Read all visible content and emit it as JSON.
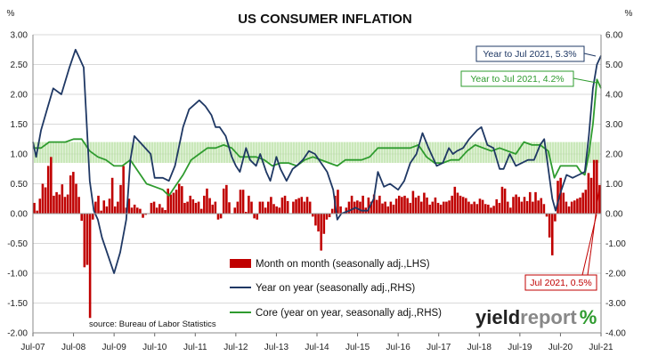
{
  "chart_data": {
    "type": "bar+line",
    "title": "US CONSUMER INFLATION",
    "left_unit": "%",
    "right_unit": "%",
    "left_axis": {
      "min": -2.0,
      "max": 3.0,
      "step": 0.5,
      "tick_labels": [
        "3.00",
        "2.50",
        "2.00",
        "1.50",
        "1.00",
        "0.50",
        "0.00",
        "-0.50",
        "-1.00",
        "-1.50",
        "-2.00"
      ]
    },
    "right_axis": {
      "min": -4.0,
      "max": 6.0,
      "step": 1.0,
      "tick_labels": [
        "6.00",
        "5.00",
        "4.00",
        "3.00",
        "2.00",
        "1.00",
        "0.00",
        "-1.00",
        "-2.00",
        "-3.00",
        "-4.00"
      ]
    },
    "x_tick_labels": [
      "Jul-07",
      "Jul-08",
      "Jul-09",
      "Jul-10",
      "Jul-11",
      "Jul-12",
      "Jul-13",
      "Jul-14",
      "Jul-15",
      "Jul-16",
      "Jul-17",
      "Jul-18",
      "Jul-19",
      "Jul-20",
      "Jul-21"
    ],
    "x_start": "Jul-07",
    "x_end": "Jul-21",
    "colors": {
      "mom": "#c00000",
      "yoy": "#1f3864",
      "core": "#2e9b2e",
      "core_band": "#c9e8b8"
    },
    "series": [
      {
        "name": "Month on month (seasonally adj.,LHS)",
        "type": "bar",
        "axis": "left",
        "values": [
          0.18,
          0.05,
          0.25,
          0.5,
          0.44,
          0.8,
          0.95,
          0.3,
          0.36,
          0.32,
          0.49,
          0.28,
          0.32,
          0.64,
          0.7,
          0.5,
          0.28,
          -0.12,
          -0.9,
          -0.86,
          -1.75,
          -0.1,
          0.2,
          0.3,
          0.05,
          0.22,
          0.12,
          0.25,
          0.6,
          0.12,
          0.2,
          0.48,
          0.8,
          0.1,
          0.25,
          0.1,
          0.15,
          0.1,
          0.08,
          -0.07,
          -0.02,
          0.0,
          0.18,
          0.2,
          0.1,
          0.16,
          0.1,
          0.06,
          0.42,
          0.32,
          0.35,
          0.4,
          0.5,
          0.46,
          0.18,
          0.2,
          0.3,
          0.24,
          0.18,
          0.2,
          0.08,
          0.3,
          0.42,
          0.26,
          0.15,
          0.2,
          -0.1,
          -0.08,
          0.42,
          0.48,
          0.19,
          0.0,
          0.1,
          0.2,
          0.4,
          0.4,
          0.03,
          0.3,
          0.2,
          -0.08,
          -0.1,
          0.2,
          0.2,
          0.1,
          0.2,
          0.28,
          0.16,
          0.12,
          0.1,
          0.27,
          0.3,
          0.21,
          0.0,
          0.2,
          0.24,
          0.26,
          0.28,
          0.2,
          0.28,
          0.2,
          -0.05,
          -0.2,
          -0.3,
          -0.62,
          -0.34,
          -0.1,
          -0.06,
          0.08,
          0.3,
          0.4,
          0.12,
          0.0,
          0.1,
          0.2,
          0.3,
          0.2,
          0.22,
          0.2,
          0.3,
          0.1,
          0.27,
          0.2,
          0.32,
          0.23,
          0.3,
          0.17,
          0.2,
          0.12,
          0.2,
          0.15,
          0.25,
          0.3,
          0.28,
          0.3,
          0.26,
          0.18,
          0.38,
          0.27,
          0.3,
          0.2,
          0.35,
          0.27,
          0.15,
          0.2,
          0.27,
          0.18,
          0.15,
          0.2,
          0.2,
          0.22,
          0.3,
          0.45,
          0.35,
          0.3,
          0.28,
          0.26,
          0.2,
          0.16,
          0.2,
          0.16,
          0.25,
          0.23,
          0.16,
          0.15,
          0.1,
          0.13,
          0.24,
          0.18,
          0.45,
          0.42,
          0.2,
          0.1,
          0.28,
          0.32,
          0.28,
          0.2,
          0.28,
          0.21,
          0.36,
          0.2,
          0.36,
          0.22,
          0.26,
          0.16,
          -0.05,
          -0.4,
          -0.7,
          -0.13,
          0.55,
          0.6,
          0.35,
          0.2,
          0.12,
          0.2,
          0.22,
          0.25,
          0.27,
          0.35,
          0.4,
          0.68,
          0.6,
          0.9,
          0.9,
          0.48
        ]
      },
      {
        "name": "Year on year (seasonally adj.,RHS)",
        "type": "line",
        "axis": "right",
        "x": [
          2007.5,
          2007.58,
          2007.7,
          2007.85,
          2008.0,
          2008.2,
          2008.4,
          2008.55,
          2008.62,
          2008.75,
          2008.9,
          2009.0,
          2009.1,
          2009.2,
          2009.35,
          2009.5,
          2009.65,
          2009.8,
          2009.9,
          2010.0,
          2010.2,
          2010.4,
          2010.5,
          2010.7,
          2010.85,
          2011.0,
          2011.2,
          2011.35,
          2011.6,
          2011.75,
          2011.9,
          2012.0,
          2012.1,
          2012.25,
          2012.4,
          2012.5,
          2012.6,
          2012.75,
          2012.85,
          2013.0,
          2013.1,
          2013.25,
          2013.35,
          2013.5,
          2013.6,
          2013.75,
          2013.9,
          2014.0,
          2014.15,
          2014.3,
          2014.45,
          2014.6,
          2014.75,
          2014.9,
          2015.0,
          2015.1,
          2015.3,
          2015.45,
          2015.6,
          2015.75,
          2015.9,
          2016.0,
          2016.15,
          2016.3,
          2016.5,
          2016.65,
          2016.8,
          2016.95,
          2017.1,
          2017.25,
          2017.45,
          2017.6,
          2017.75,
          2017.85,
          2017.95,
          2018.1,
          2018.25,
          2018.45,
          2018.55,
          2018.7,
          2018.85,
          2019.0,
          2019.1,
          2019.25,
          2019.4,
          2019.55,
          2019.7,
          2019.85,
          2020.0,
          2020.1,
          2020.2,
          2020.3,
          2020.38,
          2020.5,
          2020.65,
          2020.8,
          2020.95,
          2021.1,
          2021.2,
          2021.3,
          2021.4,
          2021.5
        ],
        "y": [
          2.4,
          1.9,
          2.8,
          3.5,
          4.2,
          4.0,
          4.9,
          5.5,
          5.3,
          4.9,
          1.1,
          0.1,
          -0.2,
          -0.8,
          -1.4,
          -2.0,
          -1.3,
          -0.2,
          1.8,
          2.6,
          2.3,
          2.0,
          1.2,
          1.2,
          1.1,
          1.6,
          2.9,
          3.5,
          3.8,
          3.6,
          3.3,
          2.9,
          2.9,
          2.6,
          1.9,
          1.6,
          1.4,
          2.2,
          1.8,
          1.6,
          2.0,
          1.4,
          1.1,
          1.9,
          1.5,
          1.1,
          1.5,
          1.6,
          1.8,
          2.1,
          2.0,
          1.7,
          1.4,
          0.8,
          -0.2,
          0.0,
          0.1,
          0.2,
          0.1,
          0.1,
          0.5,
          1.4,
          0.9,
          1.0,
          0.8,
          1.1,
          1.7,
          2.0,
          2.7,
          2.2,
          1.6,
          1.7,
          2.2,
          2.0,
          2.1,
          2.2,
          2.5,
          2.8,
          2.9,
          2.3,
          2.2,
          1.5,
          1.5,
          2.0,
          1.6,
          1.7,
          1.8,
          1.8,
          2.3,
          2.5,
          1.5,
          0.5,
          0.1,
          0.7,
          1.3,
          1.2,
          1.3,
          1.4,
          2.6,
          4.2,
          5.0,
          5.3
        ]
      },
      {
        "name": "Core (year on year, seasonally adj.,RHS)",
        "type": "line",
        "axis": "right",
        "x": [
          2007.5,
          2007.7,
          2007.9,
          2008.1,
          2008.3,
          2008.5,
          2008.7,
          2008.9,
          2009.1,
          2009.3,
          2009.5,
          2009.7,
          2009.9,
          2010.1,
          2010.3,
          2010.5,
          2010.7,
          2010.85,
          2011.0,
          2011.2,
          2011.4,
          2011.6,
          2011.8,
          2012.0,
          2012.2,
          2012.4,
          2012.6,
          2012.8,
          2013.0,
          2013.2,
          2013.4,
          2013.6,
          2013.8,
          2014.0,
          2014.2,
          2014.4,
          2014.6,
          2014.8,
          2015.0,
          2015.2,
          2015.4,
          2015.6,
          2015.8,
          2016.0,
          2016.2,
          2016.4,
          2016.6,
          2016.8,
          2017.0,
          2017.2,
          2017.4,
          2017.6,
          2017.8,
          2018.0,
          2018.2,
          2018.4,
          2018.6,
          2018.8,
          2019.0,
          2019.2,
          2019.4,
          2019.6,
          2019.8,
          2020.0,
          2020.2,
          2020.35,
          2020.5,
          2020.7,
          2020.9,
          2021.0,
          2021.1,
          2021.2,
          2021.3,
          2021.4,
          2021.5
        ],
        "y": [
          2.2,
          2.2,
          2.4,
          2.4,
          2.4,
          2.5,
          2.5,
          2.1,
          1.9,
          1.8,
          1.6,
          1.6,
          1.8,
          1.4,
          1.0,
          0.9,
          0.8,
          0.6,
          0.9,
          1.3,
          1.8,
          2.0,
          2.2,
          2.2,
          2.3,
          2.2,
          1.9,
          1.9,
          1.9,
          1.8,
          1.6,
          1.7,
          1.7,
          1.6,
          1.8,
          1.9,
          1.8,
          1.7,
          1.6,
          1.8,
          1.8,
          1.8,
          1.9,
          2.2,
          2.2,
          2.2,
          2.2,
          2.2,
          2.3,
          1.9,
          1.7,
          1.7,
          1.8,
          1.8,
          2.1,
          2.3,
          2.2,
          2.1,
          2.2,
          2.1,
          2.0,
          2.4,
          2.3,
          2.3,
          2.1,
          1.2,
          1.6,
          1.6,
          1.6,
          1.4,
          1.3,
          2.0,
          3.0,
          4.5,
          4.2
        ]
      }
    ],
    "core_band": {
      "axis": "right",
      "from": 1.7,
      "to": 2.4,
      "x_from": "Jul-07",
      "x_to": "Jul-21"
    },
    "annotations": {
      "yoy": "Year to Jul 2021, 5.3%",
      "core": "Year to Jul 2021, 4.2%",
      "mom": "Jul 2021, 0.5%"
    },
    "source": "source: Bureau of Labor Statistics",
    "logo": {
      "part1": "yield",
      "part2": "report",
      "part3": "%"
    },
    "legend_placement": "bottom-center inside plot",
    "grid": "horizontal gridlines on left-axis ticks"
  }
}
